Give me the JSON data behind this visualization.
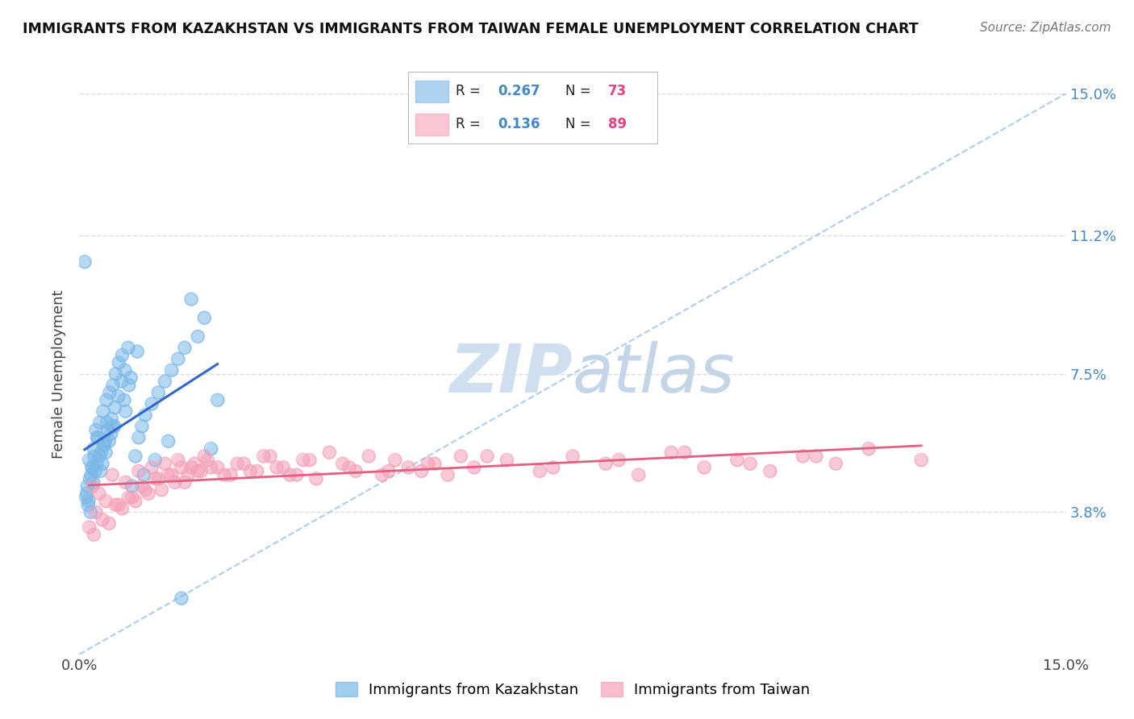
{
  "title": "IMMIGRANTS FROM KAZAKHSTAN VS IMMIGRANTS FROM TAIWAN FEMALE UNEMPLOYMENT CORRELATION CHART",
  "source": "Source: ZipAtlas.com",
  "ylabel": "Female Unemployment",
  "xlim": [
    0.0,
    15.0
  ],
  "ylim": [
    0.0,
    15.0
  ],
  "ytick_labels": [
    "3.8%",
    "7.5%",
    "11.2%",
    "15.0%"
  ],
  "ytick_values": [
    3.8,
    7.5,
    11.2,
    15.0
  ],
  "legend_labels": [
    "Immigrants from Kazakhstan",
    "Immigrants from Taiwan"
  ],
  "kaz_R": 0.267,
  "kaz_N": 73,
  "taiwan_R": 0.136,
  "taiwan_N": 89,
  "kaz_color": "#7ab8e8",
  "taiwan_color": "#f4a0b8",
  "kaz_line_color": "#3366cc",
  "taiwan_line_color": "#e06080",
  "ref_line_color": "#b0cce8",
  "watermark_color": "#d0dff0",
  "background_color": "#ffffff",
  "grid_color": "#dddddd",
  "kaz_scatter_x": [
    0.15,
    0.18,
    0.2,
    0.22,
    0.25,
    0.28,
    0.3,
    0.32,
    0.35,
    0.38,
    0.4,
    0.42,
    0.45,
    0.48,
    0.5,
    0.12,
    0.16,
    0.19,
    0.23,
    0.27,
    0.31,
    0.36,
    0.41,
    0.46,
    0.51,
    0.55,
    0.6,
    0.65,
    0.7,
    0.75,
    0.1,
    0.13,
    0.17,
    0.21,
    0.26,
    0.33,
    0.39,
    0.44,
    0.49,
    0.54,
    0.59,
    0.64,
    0.69,
    0.74,
    0.8,
    0.85,
    0.9,
    0.95,
    1.0,
    1.1,
    1.2,
    1.3,
    1.4,
    1.5,
    1.6,
    1.7,
    1.8,
    1.9,
    2.0,
    2.1,
    0.08,
    0.11,
    0.14,
    0.24,
    0.37,
    0.53,
    0.68,
    0.78,
    0.88,
    0.98,
    1.15,
    1.35,
    1.55
  ],
  "kaz_scatter_y": [
    5.2,
    4.8,
    5.0,
    5.5,
    6.0,
    5.8,
    5.3,
    4.9,
    5.1,
    5.6,
    5.4,
    6.2,
    5.7,
    5.9,
    6.1,
    4.5,
    4.7,
    5.0,
    5.3,
    5.8,
    6.2,
    6.5,
    6.8,
    7.0,
    7.2,
    7.5,
    7.8,
    8.0,
    6.5,
    7.2,
    4.2,
    4.0,
    3.8,
    4.6,
    5.1,
    5.4,
    5.7,
    6.0,
    6.3,
    6.6,
    6.9,
    7.3,
    7.6,
    8.2,
    4.5,
    5.3,
    5.8,
    6.1,
    6.4,
    6.7,
    7.0,
    7.3,
    7.6,
    7.9,
    8.2,
    9.5,
    8.5,
    9.0,
    5.5,
    6.8,
    10.5,
    4.3,
    4.1,
    4.9,
    5.6,
    6.1,
    6.8,
    7.4,
    8.1,
    4.8,
    5.2,
    5.7,
    1.5
  ],
  "taiwan_scatter_x": [
    0.2,
    0.3,
    0.4,
    0.5,
    0.6,
    0.7,
    0.8,
    0.9,
    1.0,
    1.1,
    1.2,
    1.3,
    1.4,
    1.5,
    1.6,
    1.7,
    1.8,
    1.9,
    2.0,
    2.2,
    2.4,
    2.6,
    2.8,
    3.0,
    3.2,
    3.4,
    3.6,
    3.8,
    4.0,
    4.2,
    4.4,
    4.6,
    4.8,
    5.0,
    5.2,
    5.4,
    5.6,
    5.8,
    6.0,
    6.5,
    7.0,
    7.5,
    8.0,
    8.5,
    9.0,
    9.5,
    10.0,
    10.5,
    11.0,
    11.5,
    0.25,
    0.35,
    0.45,
    0.55,
    0.65,
    0.75,
    0.85,
    0.95,
    1.05,
    1.15,
    1.25,
    1.35,
    1.45,
    1.55,
    1.65,
    1.75,
    1.85,
    1.95,
    2.1,
    2.3,
    2.5,
    2.7,
    2.9,
    3.1,
    3.3,
    3.5,
    4.1,
    4.7,
    5.3,
    6.2,
    7.2,
    8.2,
    9.2,
    10.2,
    11.2,
    12.0,
    12.8,
    0.15,
    0.22
  ],
  "taiwan_scatter_y": [
    4.5,
    4.3,
    4.1,
    4.8,
    4.0,
    4.6,
    4.2,
    4.9,
    4.4,
    5.0,
    4.7,
    5.1,
    4.8,
    5.2,
    4.6,
    5.0,
    4.9,
    5.3,
    5.0,
    4.8,
    5.1,
    4.9,
    5.3,
    5.0,
    4.8,
    5.2,
    4.7,
    5.4,
    5.1,
    4.9,
    5.3,
    4.8,
    5.2,
    5.0,
    4.9,
    5.1,
    4.8,
    5.3,
    5.0,
    5.2,
    4.9,
    5.3,
    5.1,
    4.8,
    5.4,
    5.0,
    5.2,
    4.9,
    5.3,
    5.1,
    3.8,
    3.6,
    3.5,
    4.0,
    3.9,
    4.2,
    4.1,
    4.5,
    4.3,
    4.7,
    4.4,
    4.8,
    4.6,
    5.0,
    4.8,
    5.1,
    4.9,
    5.2,
    5.0,
    4.8,
    5.1,
    4.9,
    5.3,
    5.0,
    4.8,
    5.2,
    5.0,
    4.9,
    5.1,
    5.3,
    5.0,
    5.2,
    5.4,
    5.1,
    5.3,
    5.5,
    5.2,
    3.4,
    3.2
  ]
}
